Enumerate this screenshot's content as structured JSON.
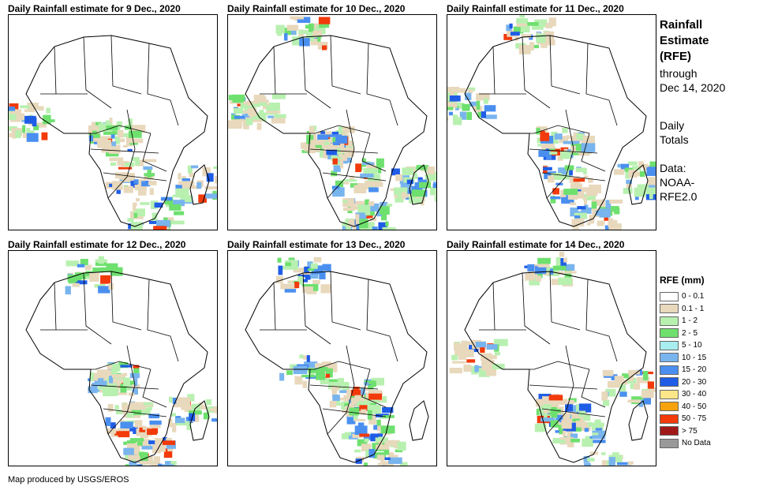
{
  "panels": [
    {
      "title": "Daily Rainfall estimate for 9 Dec., 2020"
    },
    {
      "title": "Daily Rainfall estimate for 10 Dec., 2020"
    },
    {
      "title": "Daily Rainfall estimate for 11 Dec., 2020"
    },
    {
      "title": "Daily Rainfall estimate for 12 Dec., 2020"
    },
    {
      "title": "Daily Rainfall estimate for 13 Dec., 2020"
    },
    {
      "title": "Daily Rainfall estimate for 14 Dec., 2020"
    }
  ],
  "sidebar": {
    "title": "Rainfall\nEstimate\n(RFE)",
    "through": "through\nDec 14, 2020",
    "daily": "Daily\nTotals",
    "data_source": "Data:\nNOAA-\nRFE2.0"
  },
  "legend": {
    "title": "RFE (mm)",
    "items": [
      {
        "label": "0 - 0.1",
        "color": "#ffffff"
      },
      {
        "label": "0.1 - 1",
        "color": "#e8d8bc"
      },
      {
        "label": "1 - 2",
        "color": "#b8f0b0"
      },
      {
        "label": "2 - 5",
        "color": "#6ee06e"
      },
      {
        "label": "5 - 10",
        "color": "#a8eef0"
      },
      {
        "label": "10 - 15",
        "color": "#78b4ee"
      },
      {
        "label": "15 - 20",
        "color": "#4a8ff0"
      },
      {
        "label": "20 - 30",
        "color": "#1f5de6"
      },
      {
        "label": "30 - 40",
        "color": "#fce68a"
      },
      {
        "label": "40 - 50",
        "color": "#f6a30d"
      },
      {
        "label": "50 - 75",
        "color": "#f23a0a"
      },
      {
        "label": "> 75",
        "color": "#a01818"
      },
      {
        "label": "No Data",
        "color": "#999999"
      }
    ]
  },
  "footer": "Map produced by USGS/EROS"
}
